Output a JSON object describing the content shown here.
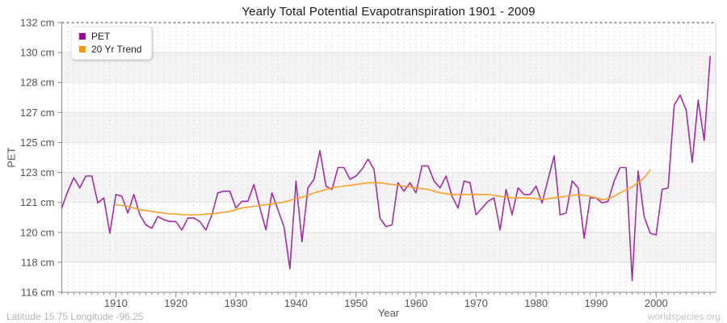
{
  "title": "Yearly Total Potential Evapotranspiration 1901 - 2009",
  "y_axis_title": "PET",
  "x_axis_title": "Year",
  "footer_left": "Latitude 15.75 Longitude -96.25",
  "footer_right": "worldspecies.org",
  "legend": {
    "items": [
      {
        "label": "PET",
        "color": "#990099"
      },
      {
        "label": "20 Yr Trend",
        "color": "#ff9900"
      }
    ]
  },
  "chart_data": {
    "type": "line",
    "title": "Yearly Total Potential Evapotranspiration 1901 - 2009",
    "xlabel": "Year",
    "ylabel": "PET",
    "x_range": [
      1901,
      2009
    ],
    "ylim": [
      116,
      132
    ],
    "grid": true,
    "legend_position": "top-left",
    "x_ticks": [
      1910,
      1920,
      1930,
      1940,
      1950,
      1960,
      1970,
      1980,
      1990,
      2000
    ],
    "y_ticks": [
      "132 cm",
      "130 cm",
      "128 cm",
      "127 cm",
      "125 cm",
      "123 cm",
      "121 cm",
      "120 cm",
      "118 cm",
      "116 cm"
    ],
    "y_tick_values": [
      132,
      130.22,
      128.44,
      126.67,
      124.89,
      123.11,
      121.33,
      119.56,
      117.78,
      116
    ],
    "band_colors": [
      "#ffffff",
      "#f4f4f4"
    ],
    "series": [
      {
        "name": "PET",
        "color": "#a62ca6",
        "x_start": 1901,
        "values": [
          121.0,
          122.0,
          122.8,
          122.2,
          122.9,
          122.9,
          121.3,
          121.6,
          119.5,
          121.8,
          121.7,
          120.7,
          121.8,
          120.6,
          120.0,
          119.8,
          120.5,
          120.3,
          120.2,
          120.2,
          119.7,
          120.4,
          120.4,
          120.2,
          119.7,
          120.6,
          121.9,
          122.0,
          122.0,
          121.0,
          121.4,
          121.4,
          122.4,
          121.0,
          119.7,
          121.9,
          120.9,
          119.9,
          117.4,
          122.6,
          119.0,
          122.2,
          122.7,
          124.4,
          122.3,
          122.1,
          123.4,
          123.4,
          122.7,
          122.9,
          123.3,
          123.9,
          123.3,
          120.4,
          119.9,
          120.0,
          122.5,
          122.0,
          122.5,
          121.9,
          123.5,
          123.5,
          122.6,
          122.2,
          122.9,
          121.7,
          121.0,
          122.6,
          122.5,
          120.6,
          121.0,
          121.4,
          121.6,
          119.7,
          122.1,
          120.6,
          122.2,
          121.8,
          121.8,
          122.3,
          121.3,
          122.7,
          124.1,
          120.6,
          120.7,
          122.6,
          122.2,
          119.2,
          121.6,
          121.6,
          121.3,
          121.4,
          122.6,
          123.4,
          123.4,
          116.7,
          123.2,
          120.5,
          119.5,
          119.4,
          122.1,
          122.2,
          127.1,
          127.7,
          126.8,
          123.7,
          127.4,
          125.0,
          130.0
        ]
      },
      {
        "name": "20 Yr Trend",
        "color": "#ffa029",
        "x_start": 1910,
        "values": [
          121.2,
          121.15,
          121.1,
          121.0,
          120.9,
          120.85,
          120.8,
          120.75,
          120.7,
          120.65,
          120.65,
          120.6,
          120.6,
          120.6,
          120.6,
          120.65,
          120.65,
          120.7,
          120.75,
          120.8,
          120.9,
          121.0,
          121.05,
          121.1,
          121.15,
          121.2,
          121.25,
          121.3,
          121.35,
          121.45,
          121.55,
          121.65,
          121.75,
          121.9,
          122.0,
          122.1,
          122.2,
          122.25,
          122.3,
          122.35,
          122.4,
          122.45,
          122.5,
          122.5,
          122.5,
          122.45,
          122.4,
          122.35,
          122.3,
          122.25,
          122.2,
          122.15,
          122.1,
          122.0,
          121.9,
          121.85,
          121.8,
          121.8,
          121.8,
          121.8,
          121.8,
          121.8,
          121.8,
          121.75,
          121.7,
          121.65,
          121.6,
          121.6,
          121.6,
          121.6,
          121.55,
          121.5,
          121.55,
          121.6,
          121.65,
          121.7,
          121.75,
          121.8,
          121.75,
          121.7,
          121.6,
          121.5,
          121.55,
          121.7,
          121.9,
          122.1,
          122.25,
          122.5,
          122.8,
          123.25
        ]
      }
    ]
  }
}
